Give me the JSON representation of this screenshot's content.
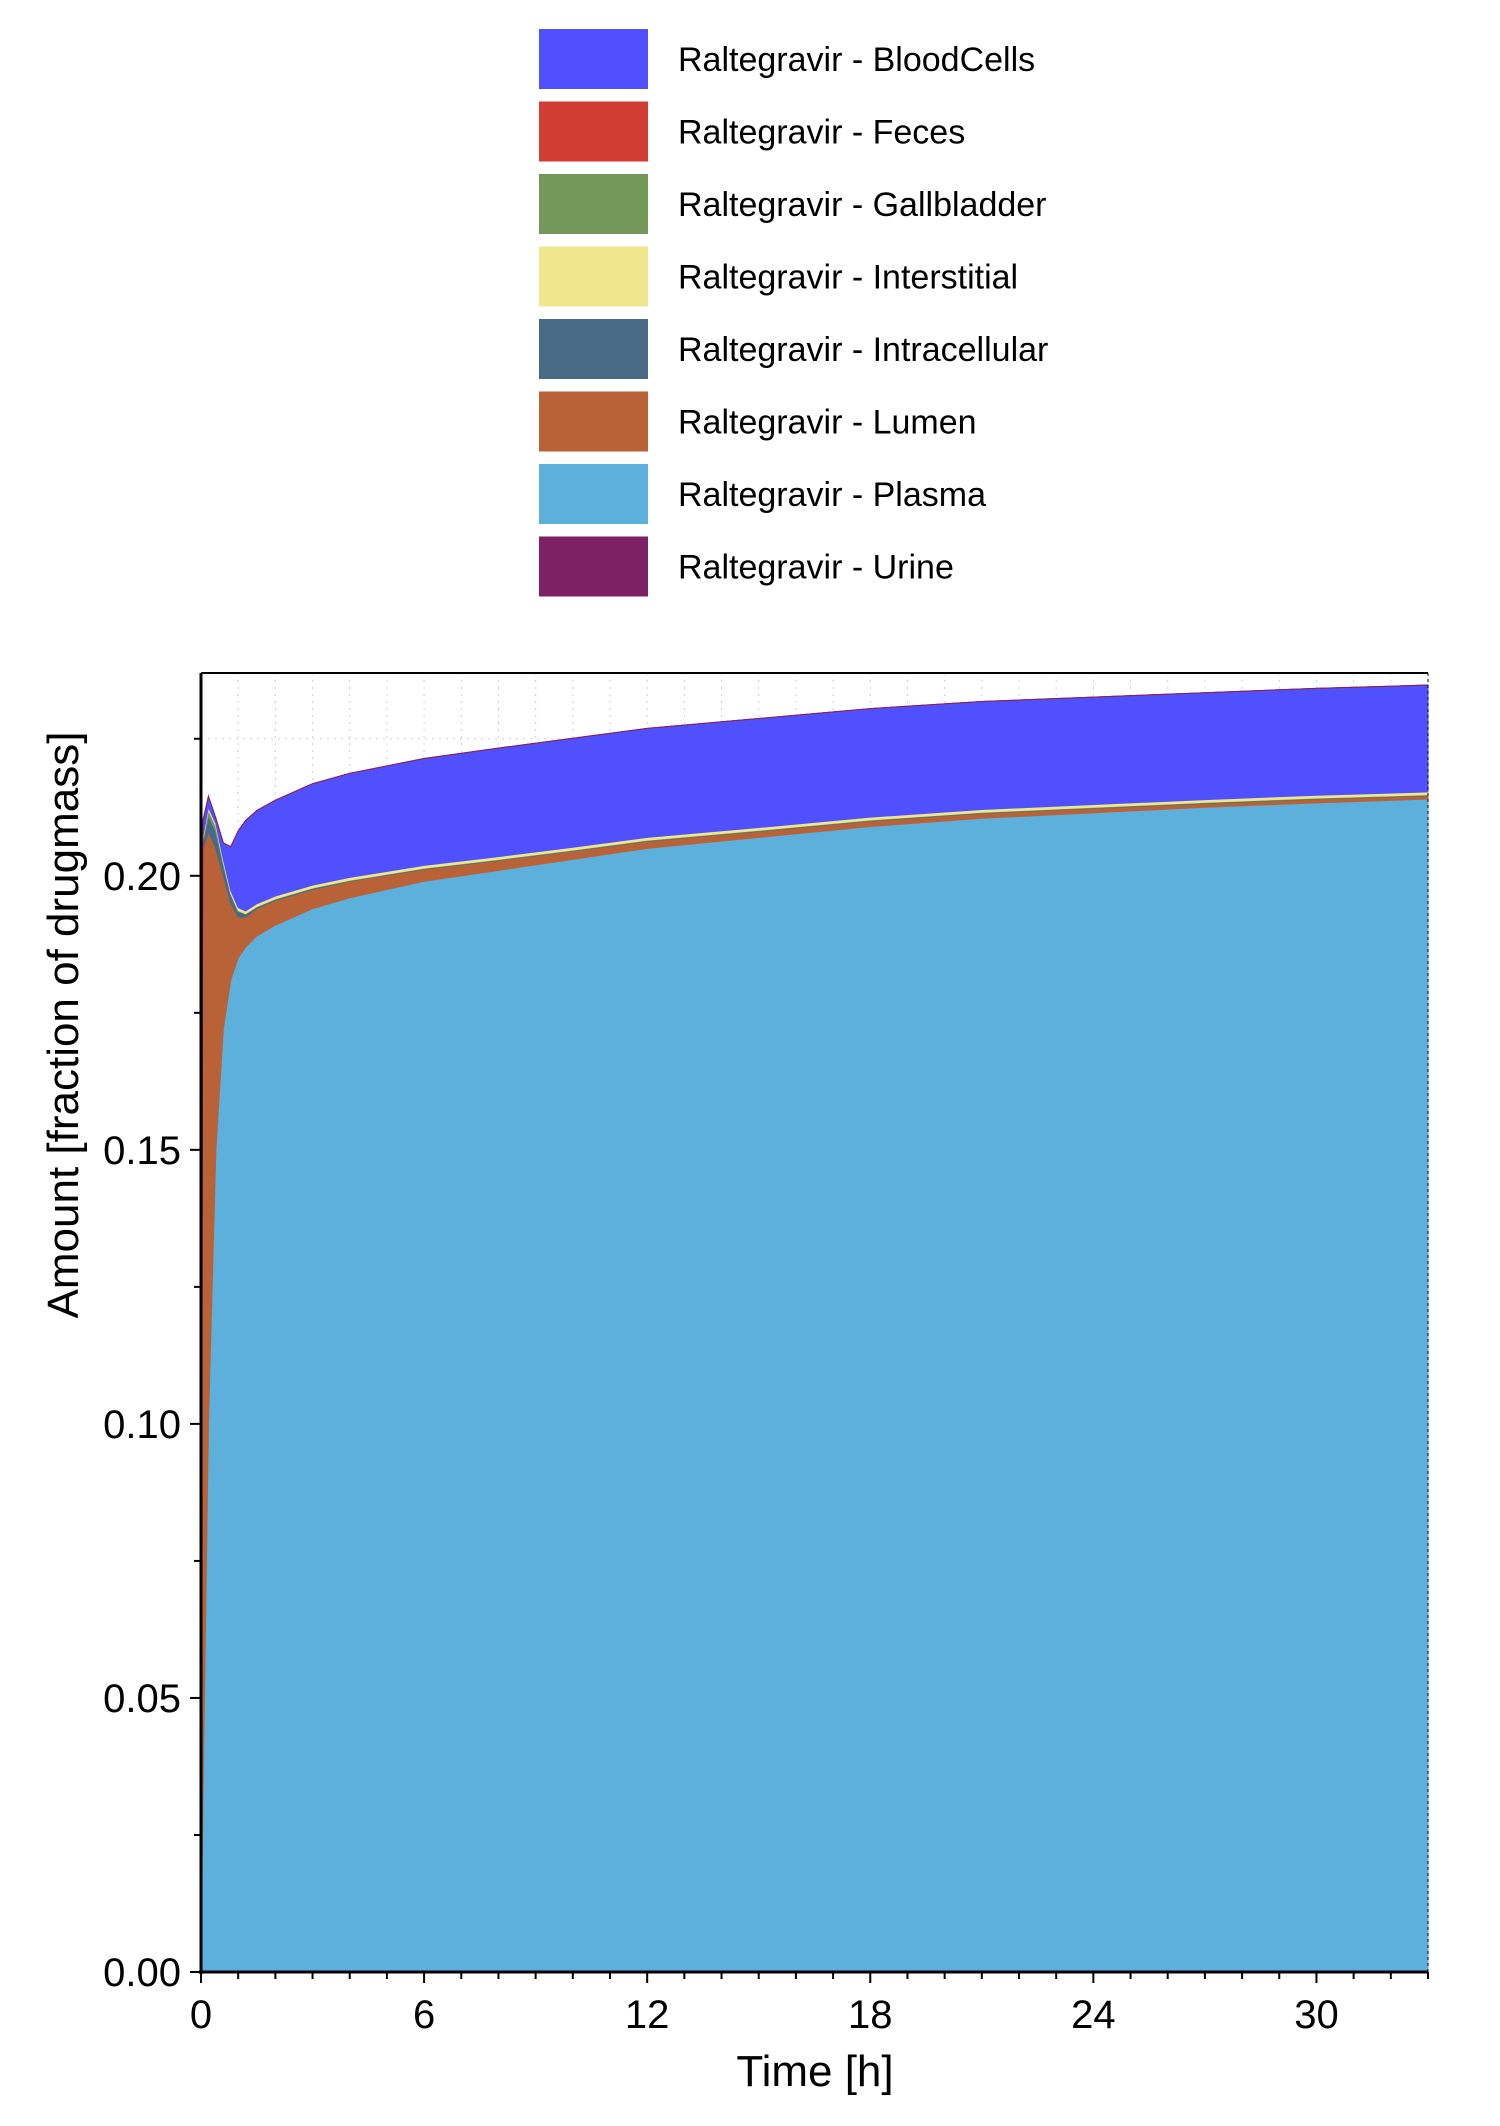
{
  "chart_data": {
    "type": "area",
    "stacked": true,
    "xlabel": "Time [h]",
    "ylabel": "Amount [fraction of drugmass]",
    "xlim": [
      0,
      33
    ],
    "ylim": [
      0,
      0.237
    ],
    "x_ticks": [
      0,
      6,
      12,
      18,
      24,
      30
    ],
    "x_tick_labels": [
      "0",
      "6",
      "12",
      "18",
      "24",
      "30"
    ],
    "y_ticks": [
      0,
      0.05,
      0.1,
      0.15,
      0.2
    ],
    "y_tick_labels": [
      "0.00",
      "0.05",
      "0.10",
      "0.15",
      "0.20"
    ],
    "grid": true,
    "legend_position": "top",
    "x": [
      0,
      0.05,
      0.2,
      0.4,
      0.6,
      0.8,
      1.0,
      1.2,
      1.5,
      2,
      3,
      4,
      6,
      8,
      10,
      12,
      15,
      18,
      21,
      24,
      27,
      30,
      33
    ],
    "series": [
      {
        "name": "Raltegravir - Plasma",
        "color": "#5dafdc",
        "values": [
          0,
          0.03,
          0.1,
          0.15,
          0.172,
          0.181,
          0.185,
          0.187,
          0.189,
          0.191,
          0.194,
          0.196,
          0.199,
          0.201,
          0.203,
          0.205,
          0.207,
          0.209,
          0.2105,
          0.2115,
          0.2125,
          0.2133,
          0.214
        ]
      },
      {
        "name": "Raltegravir - Lumen",
        "color": "#b96237",
        "values": [
          0,
          0.175,
          0.108,
          0.055,
          0.028,
          0.014,
          0.0075,
          0.0055,
          0.005,
          0.0045,
          0.0035,
          0.003,
          0.0022,
          0.0018,
          0.0015,
          0.0013,
          0.0011,
          0.001,
          0.0009,
          0.0008,
          0.0007,
          0.0007,
          0.0006
        ]
      },
      {
        "name": "Raltegravir - Intracellular",
        "color": "#476b86",
        "values": [
          0,
          0.001,
          0.003,
          0.003,
          0.002,
          0.0015,
          0.001,
          0.0005,
          0.0003,
          0.0002,
          0.0002,
          0.0001,
          0.0001,
          0.0001,
          0.0001,
          0.0001,
          0.0001,
          0.0001,
          0.0001,
          0.0001,
          0.0001,
          0.0001,
          0.0001
        ]
      },
      {
        "name": "Raltegravir - Gallbladder",
        "color": "#74975a",
        "values": [
          0,
          0.0005,
          0.001,
          0.001,
          0.0005,
          0.0003,
          0.0002,
          0.0001,
          0.0001,
          0.0001,
          0.0001,
          0.0001,
          0.0001,
          0.0001,
          0.0001,
          0.0001,
          0.0001,
          0.0001,
          0.0001,
          0.0001,
          0.0001,
          0.0001,
          0.0001
        ]
      },
      {
        "name": "Raltegravir - Interstitial",
        "color": "#f0e68c",
        "values": [
          0,
          0.0005,
          0.0005,
          0.0005,
          0.0005,
          0.0005,
          0.0005,
          0.0005,
          0.0005,
          0.0005,
          0.0005,
          0.0005,
          0.0005,
          0.0005,
          0.0005,
          0.0005,
          0.0005,
          0.0005,
          0.0005,
          0.0005,
          0.0005,
          0.0005,
          0.0005
        ]
      },
      {
        "name": "Raltegravir - BloodCells",
        "color": "#5050ff",
        "values": [
          0,
          0.003,
          0.002,
          0.001,
          0.003,
          0.008,
          0.014,
          0.0165,
          0.017,
          0.0175,
          0.0185,
          0.019,
          0.0195,
          0.0198,
          0.0199,
          0.0199,
          0.0199,
          0.0198,
          0.0197,
          0.0196,
          0.0195,
          0.0195,
          0.0195
        ]
      },
      {
        "name": "Raltegravir - Feces",
        "color": "#d13d32",
        "values": [
          0,
          0,
          0,
          0,
          0,
          0,
          0,
          0,
          0,
          0,
          0,
          0,
          0,
          0,
          0,
          0,
          0,
          0,
          0,
          0,
          0,
          0,
          0
        ]
      },
      {
        "name": "Raltegravir - Urine",
        "color": "#7e2064",
        "values": [
          0,
          0,
          0,
          0,
          0,
          0,
          0,
          0,
          0,
          0,
          0,
          0,
          0,
          0,
          0,
          0,
          0,
          0,
          0,
          0,
          0,
          0,
          0
        ]
      }
    ],
    "legend": [
      {
        "label": "Raltegravir - BloodCells",
        "color": "#5050ff"
      },
      {
        "label": "Raltegravir - Feces",
        "color": "#d13d32"
      },
      {
        "label": "Raltegravir - Gallbladder",
        "color": "#74975a"
      },
      {
        "label": "Raltegravir - Interstitial",
        "color": "#f0e68c"
      },
      {
        "label": "Raltegravir - Intracellular",
        "color": "#476b86"
      },
      {
        "label": "Raltegravir - Lumen",
        "color": "#b96237"
      },
      {
        "label": "Raltegravir - Plasma",
        "color": "#5dafdc"
      },
      {
        "label": "Raltegravir - Urine",
        "color": "#7e2064"
      }
    ]
  }
}
